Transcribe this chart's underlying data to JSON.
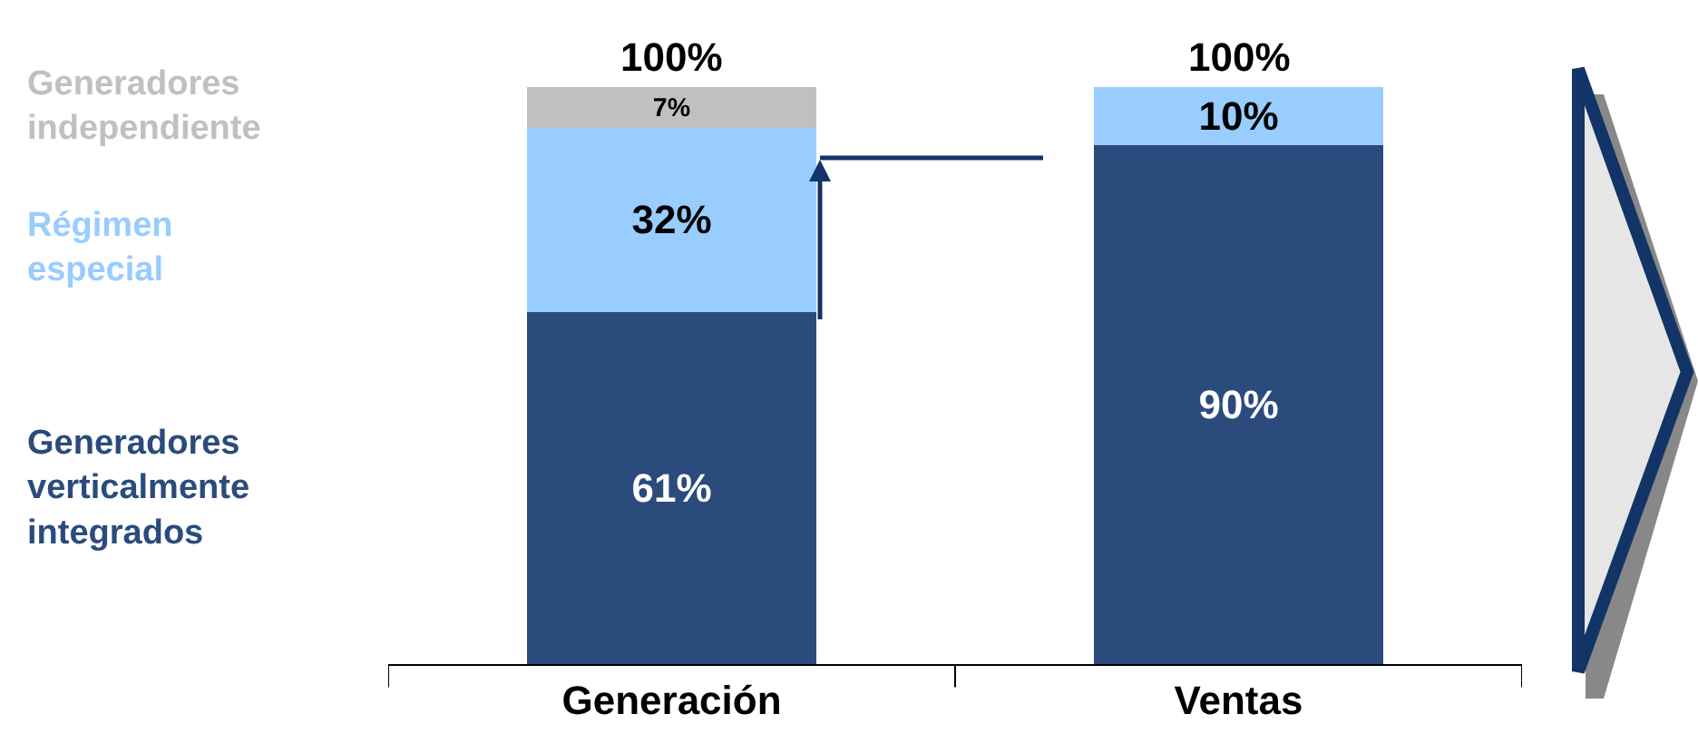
{
  "chart_data": {
    "type": "bar",
    "stacked": true,
    "categories": [
      "Generación",
      "Ventas"
    ],
    "series": [
      {
        "name": "Generadores verticalmente integrados",
        "color": "#2b4b7d",
        "values": [
          61,
          90
        ],
        "value_labels": [
          "61%",
          "90%"
        ]
      },
      {
        "name": "Régimen especial",
        "color": "#99ccff",
        "values": [
          32,
          10
        ],
        "value_labels": [
          "32%",
          "10%"
        ]
      },
      {
        "name": "Generadores independiente",
        "color": "#c0c0c0",
        "values": [
          7,
          null
        ],
        "value_labels": [
          "7%",
          null
        ]
      }
    ],
    "totals": [
      "100%",
      "100%"
    ]
  }
}
